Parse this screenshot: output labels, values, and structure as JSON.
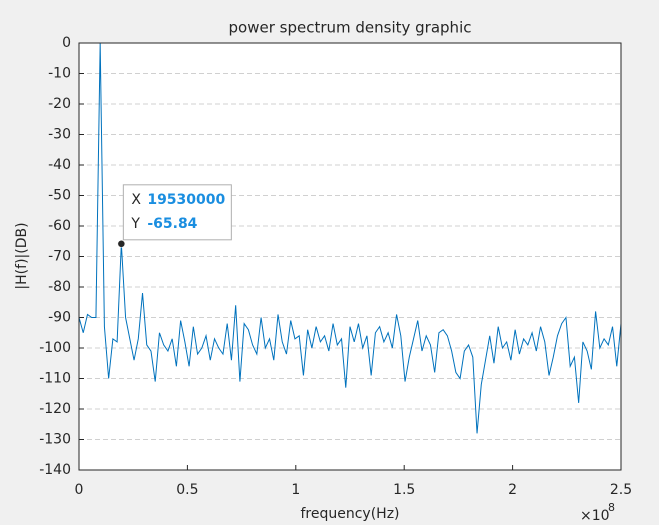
{
  "chart_data": {
    "type": "line",
    "title": "power spectrum density graphic",
    "x_label": "frequency(Hz)",
    "y_label": "|H(f)|(DB)",
    "x_exponent": {
      "base": "×10",
      "power": "8"
    },
    "x": [
      0,
      1953125,
      3906250,
      5859375,
      7812500,
      9765625,
      11718750,
      13671875,
      15625000,
      17578125,
      19531250,
      21484375,
      23437500,
      25390625,
      27343750,
      29296875,
      31250000,
      33203125,
      35156250,
      37109375,
      39062500,
      41015625,
      42968750,
      44921875,
      46875000,
      48828125,
      50781250,
      52734375,
      54687500,
      56640625,
      58593750,
      60546875,
      62500000,
      64453125,
      66406250,
      68359375,
      70312500,
      72265625,
      74218750,
      76171875,
      78125000,
      80078125,
      82031250,
      83984375,
      85937500,
      87890625,
      89843750,
      91796875,
      93750000,
      95703125,
      97656250,
      99609375,
      101562500,
      103515625,
      105468750,
      107421875,
      109375000,
      111328125,
      113281250,
      115234375,
      117187500,
      119140625,
      121093750,
      123046875,
      125000000,
      126953125,
      128906250,
      130859375,
      132812500,
      134765625,
      136718750,
      138671875,
      140625000,
      142578125,
      144531250,
      146484375,
      148437500,
      150390625,
      152343750,
      154296875,
      156250000,
      158203125,
      160156250,
      162109375,
      164062500,
      166015625,
      167968750,
      169921875,
      171875000,
      173828125,
      175781250,
      177734375,
      179687500,
      181640625,
      183593750,
      185546875,
      187500000,
      189453125,
      191406250,
      193359375,
      195312500,
      197265625,
      199218750,
      201171875,
      203125000,
      205078125,
      207031250,
      208984375,
      210937500,
      212890625,
      214843750,
      216796875,
      218750000,
      220703125,
      222656250,
      224609375,
      226562500,
      228515625,
      230468750,
      232421875,
      234375000,
      236328125,
      238281250,
      240234375,
      242187500,
      244140625,
      246093750,
      248046875,
      250000000
    ],
    "series": [
      {
        "color": "#0072bd",
        "values": [
          -90,
          -95,
          -89,
          -90,
          -90,
          0,
          -93,
          -110,
          -97,
          -98,
          -65.84,
          -90,
          -97,
          -104,
          -97,
          -82,
          -99,
          -101,
          -111,
          -95,
          -99,
          -101,
          -97,
          -106,
          -91,
          -98,
          -106,
          -93,
          -102,
          -100,
          -96,
          -104,
          -97,
          -100,
          -102,
          -92,
          -104,
          -86,
          -111,
          -92,
          -94,
          -99,
          -102,
          -90,
          -100,
          -97,
          -104,
          -89,
          -98,
          -102,
          -91,
          -97,
          -96,
          -109,
          -94,
          -100,
          -93,
          -98,
          -96,
          -101,
          -92,
          -99,
          -97,
          -113,
          -93,
          -98,
          -92,
          -100,
          -96,
          -109,
          -95,
          -93,
          -98,
          -95,
          -100,
          -89,
          -96,
          -111,
          -103,
          -97,
          -91,
          -101,
          -96,
          -99,
          -108,
          -95,
          -94,
          -96,
          -101,
          -108,
          -110,
          -101,
          -99,
          -103,
          -128,
          -112,
          -104,
          -96,
          -105,
          -93,
          -100,
          -98,
          -104,
          -94,
          -102,
          -97,
          -99,
          -95,
          -101,
          -93,
          -98,
          -109,
          -103,
          -96,
          -92,
          -90,
          -106,
          -103,
          -118,
          -98,
          -101,
          -107,
          -88,
          -100,
          -97,
          -99,
          -93,
          -106,
          -92
        ]
      }
    ],
    "xlim": [
      0,
      250000000
    ],
    "xticks": [
      0,
      {
        "value": 50000000,
        "label": "0.5"
      },
      {
        "value": 100000000,
        "label": "1"
      },
      {
        "value": 150000000,
        "label": "1.5"
      },
      {
        "value": 200000000,
        "label": "2"
      },
      {
        "value": 250000000,
        "label": "2.5"
      }
    ],
    "ylim": [
      -140,
      0
    ],
    "yticks": [
      0,
      -10,
      -20,
      -30,
      -40,
      -50,
      -60,
      -70,
      -80,
      -90,
      -100,
      -110,
      -120,
      -130,
      -140
    ],
    "grid": "y",
    "datatip": {
      "x_label": "X",
      "x": 19530000,
      "y_label": "Y",
      "y": -65.84
    }
  }
}
